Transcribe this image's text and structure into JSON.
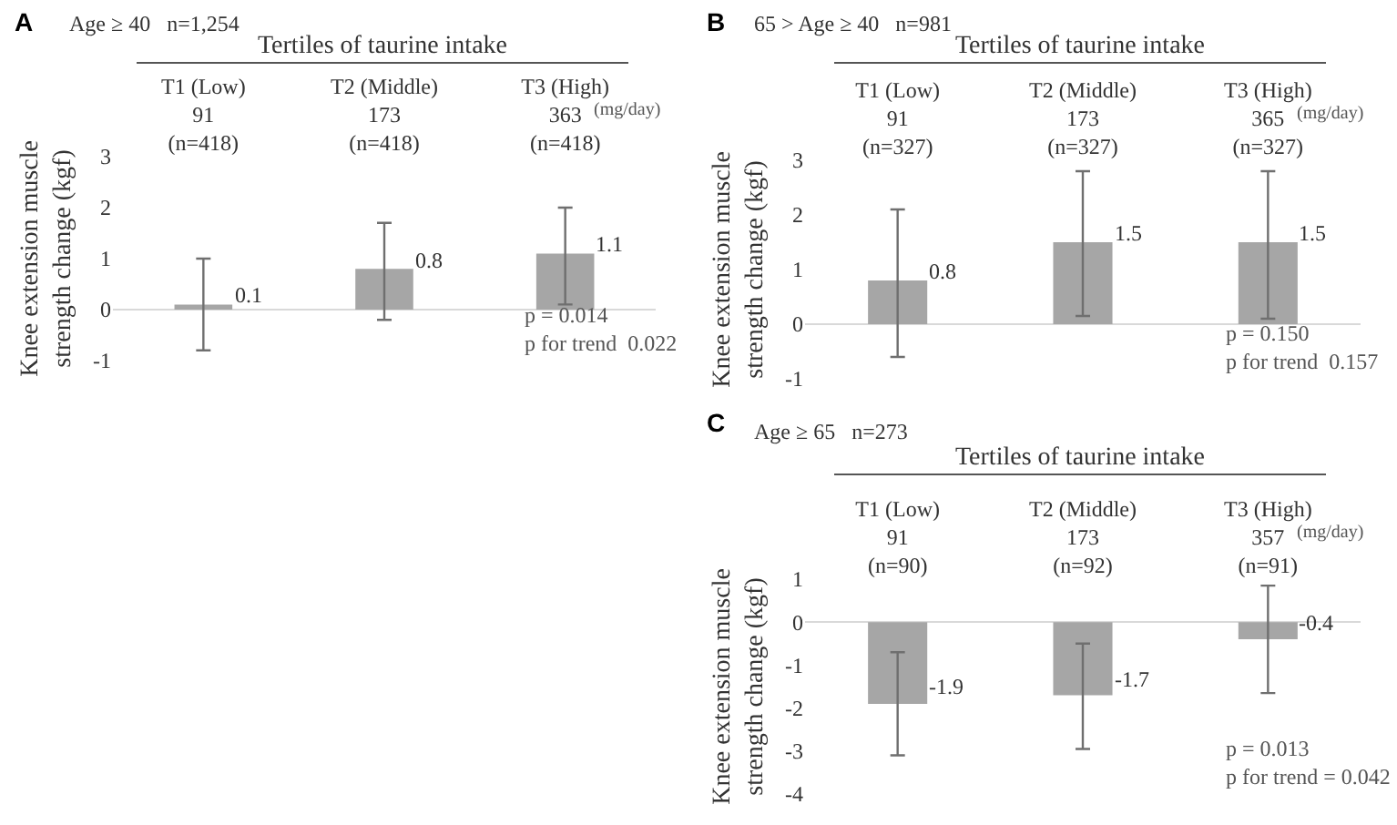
{
  "chart_data": [
    {
      "type": "bar",
      "title": "A",
      "subtitle": "Age ≥ 40   n=1,254",
      "xlabel": "Tertiles of taurine intake",
      "ylabel": "Knee extension muscle\nstrength change (kgf)",
      "categories": [
        "T1 (Low)\n91\n(n=418)",
        "T2 (Middle)\n173\n(n=418)",
        "T3 (High)\n363\n(n=418)"
      ],
      "values": [
        0.1,
        0.8,
        1.1
      ],
      "errors": [
        [
          -0.8,
          1.0
        ],
        [
          -0.2,
          1.7
        ],
        [
          0.1,
          2.0
        ]
      ],
      "color": "#a6a6a6",
      "ylim": [
        -1,
        3
      ],
      "yticks": [
        -1,
        0,
        1,
        2,
        3
      ],
      "data_labels": true,
      "annotations": [
        "(mg/day)",
        "p = 0.014\np for trend  0.022"
      ]
    },
    {
      "type": "bar",
      "title": "B",
      "subtitle": "65 > Age ≥ 40   n=981",
      "xlabel": "Tertiles of taurine intake",
      "ylabel": "Knee extension muscle\nstrength change (kgf)",
      "categories": [
        "T1 (Low)\n91\n(n=327)",
        "T2 (Middle)\n173\n(n=327)",
        "T3 (High)\n365\n(n=327)"
      ],
      "values": [
        0.8,
        1.5,
        1.5
      ],
      "errors": [
        [
          -0.6,
          2.1
        ],
        [
          0.15,
          2.8
        ],
        [
          0.1,
          2.8
        ]
      ],
      "color": "#a6a6a6",
      "ylim": [
        -1,
        3
      ],
      "yticks": [
        -1,
        0,
        1,
        2,
        3
      ],
      "data_labels": true,
      "annotations": [
        "(mg/day)",
        "p = 0.150\np for trend  0.157"
      ]
    },
    {
      "type": "bar",
      "title": "C",
      "subtitle": "Age ≥ 65   n=273",
      "xlabel": "Tertiles of taurine intake",
      "ylabel": "Knee extension muscle\nstrength change (kgf)",
      "categories": [
        "T1 (Low)\n91\n(n=90)",
        "T2 (Middle)\n173\n(n=92)",
        "T3 (High)\n357\n(n=91)"
      ],
      "values": [
        -1.9,
        -1.7,
        -0.4
      ],
      "errors": [
        [
          -3.1,
          -0.7
        ],
        [
          -2.95,
          -0.5
        ],
        [
          -1.65,
          0.85
        ]
      ],
      "color": "#a6a6a6",
      "ylim": [
        -4,
        1
      ],
      "yticks": [
        -4,
        -3,
        -2,
        -1,
        0,
        1
      ],
      "data_labels": true,
      "annotations": [
        "(mg/day)",
        "p = 0.013\np for trend = 0.042"
      ]
    }
  ]
}
